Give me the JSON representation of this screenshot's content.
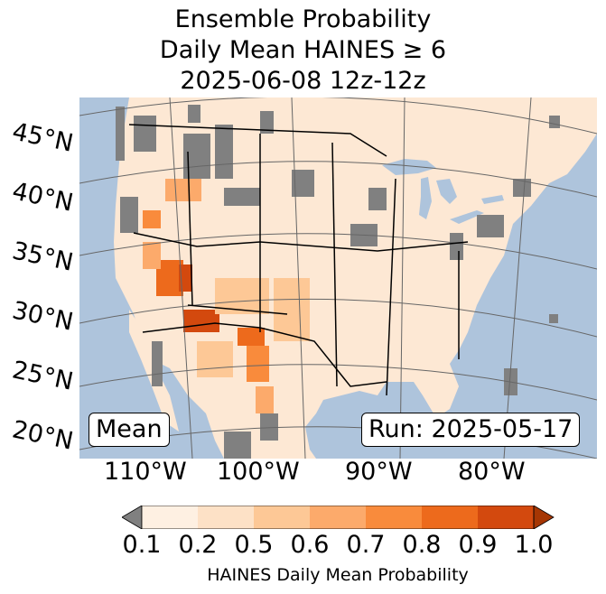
{
  "title": {
    "line1": "Ensemble Probability",
    "line2": "Daily Mean HAINES ≥ 6",
    "line3": "2025-06-08 12z-12z"
  },
  "map": {
    "region": "Continental United States",
    "ocean_color": "#aec4dc",
    "land_color": "#fde8d4",
    "missing_color": "#808080",
    "lat_labels": [
      "45°N",
      "40°N",
      "35°N",
      "30°N",
      "25°N",
      "20°N"
    ],
    "lon_labels": [
      "110°W",
      "100°W",
      "90°W",
      "80°W"
    ],
    "stat_label": "Mean",
    "run_label": "Run: 2025-05-17"
  },
  "colorbar": {
    "ticks": [
      "0.1",
      "0.2",
      "0.5",
      "0.6",
      "0.7",
      "0.8",
      "0.9",
      "1.0"
    ],
    "colors": [
      "#fef0e2",
      "#fde1c6",
      "#fdc896",
      "#fcaa6b",
      "#f98b3c",
      "#ed6a1c",
      "#d3490e"
    ],
    "under_color": "#808080",
    "over_color": "#a63603",
    "label": "HAINES Daily Mean Probability"
  }
}
